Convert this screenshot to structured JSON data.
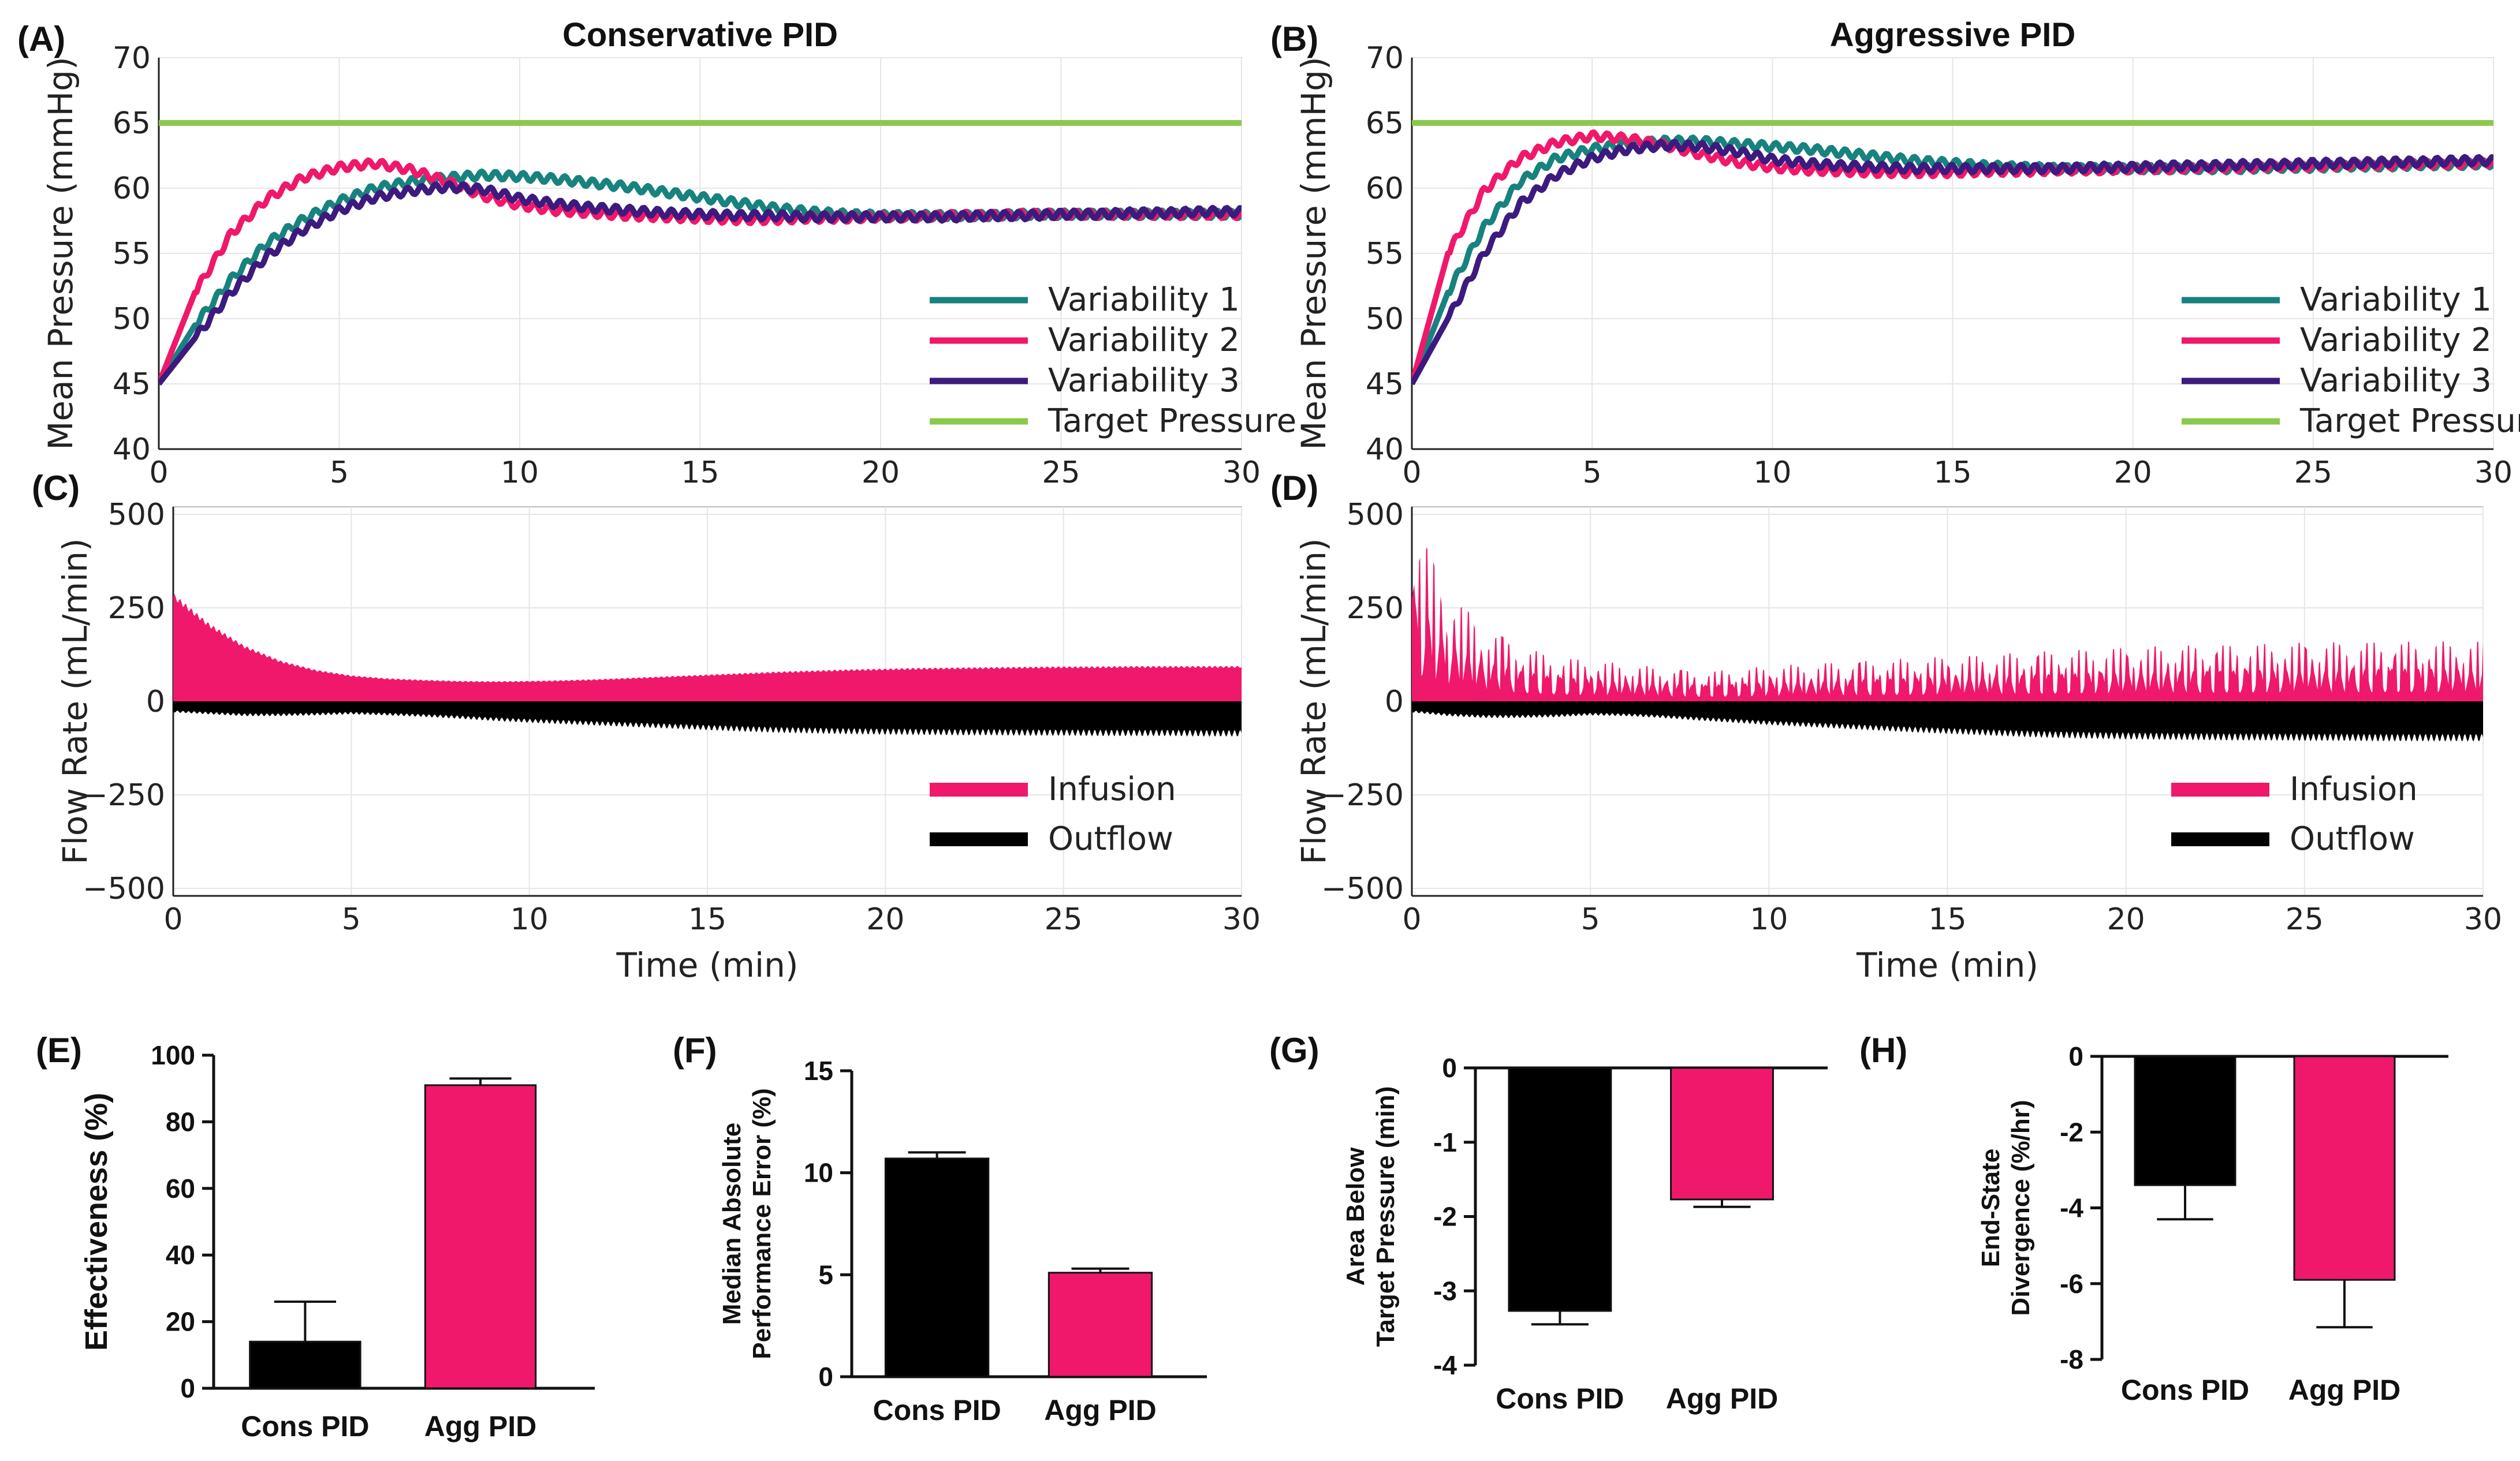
{
  "chart_data": [
    {
      "panel": "(A)",
      "type": "line",
      "title": "Conservative PID",
      "xlabel": "",
      "ylabel": "Mean Pressure (mmHg)",
      "xlim": [
        0,
        30
      ],
      "ylim": [
        40,
        70
      ],
      "xticks": [
        "0",
        "5",
        "10",
        "15",
        "20",
        "25",
        "30"
      ],
      "yticks": [
        "40",
        "45",
        "50",
        "55",
        "60",
        "65",
        "70"
      ],
      "grid": true,
      "legend": "bottom-right",
      "series": [
        {
          "name": "Variability 1",
          "color": "#18827E",
          "x": [
            0,
            1,
            2,
            3,
            4,
            5,
            6,
            7,
            8,
            9,
            10,
            11,
            12,
            13,
            14,
            15,
            16,
            17,
            18,
            19,
            20,
            21,
            22,
            23,
            24,
            25,
            26,
            27,
            28,
            29,
            30
          ],
          "y": [
            45,
            49.5,
            53,
            55.8,
            57.6,
            59,
            60,
            60.5,
            60.8,
            61,
            60.9,
            60.7,
            60.4,
            60.1,
            59.7,
            59.3,
            58.9,
            58.5,
            58.2,
            58,
            57.9,
            57.9,
            57.9,
            57.9,
            58,
            58,
            58,
            58,
            58,
            58,
            58
          ]
        },
        {
          "name": "Variability 2",
          "color": "#F0186A",
          "x": [
            0,
            1,
            2,
            3,
            4,
            5,
            6,
            7,
            8,
            9,
            10,
            11,
            12,
            13,
            14,
            15,
            16,
            17,
            18,
            19,
            20,
            21,
            22,
            23,
            24,
            25,
            26,
            27,
            28,
            29,
            30
          ],
          "y": [
            45,
            52,
            56.5,
            59.2,
            60.8,
            61.6,
            61.9,
            61.4,
            60.5,
            59.4,
            58.7,
            58.3,
            58.1,
            57.9,
            57.8,
            57.7,
            57.6,
            57.6,
            57.7,
            57.7,
            57.8,
            57.8,
            57.9,
            57.9,
            58,
            58,
            58,
            58,
            58,
            58,
            58
          ]
        },
        {
          "name": "Variability 3",
          "color": "#3D1A7E",
          "x": [
            0,
            1,
            2,
            3,
            4,
            5,
            6,
            7,
            8,
            9,
            10,
            11,
            12,
            13,
            14,
            15,
            16,
            17,
            18,
            19,
            20,
            21,
            22,
            23,
            24,
            25,
            26,
            27,
            28,
            29,
            30
          ],
          "y": [
            45,
            48.5,
            52,
            54.8,
            56.8,
            58.3,
            59.3,
            59.8,
            60.1,
            59.9,
            59.2,
            58.8,
            58.5,
            58.3,
            58.1,
            58,
            57.9,
            57.9,
            57.8,
            57.8,
            57.8,
            57.8,
            57.8,
            57.9,
            57.9,
            58,
            58,
            58.1,
            58.1,
            58.2,
            58.2
          ]
        },
        {
          "name": "Target Pressure",
          "color": "#8CC84B",
          "x": [
            0,
            30
          ],
          "y": [
            65,
            65
          ]
        }
      ]
    },
    {
      "panel": "(B)",
      "type": "line",
      "title": "Aggressive PID",
      "xlabel": "",
      "ylabel": "Mean Pressure (mmHg)",
      "xlim": [
        0,
        30
      ],
      "ylim": [
        40,
        70
      ],
      "xticks": [
        "0",
        "5",
        "10",
        "15",
        "20",
        "25",
        "30"
      ],
      "yticks": [
        "40",
        "45",
        "50",
        "55",
        "60",
        "65",
        "70"
      ],
      "grid": true,
      "legend": "bottom-right",
      "series": [
        {
          "name": "Variability 1",
          "color": "#18827E",
          "x": [
            0,
            1,
            2,
            3,
            4,
            5,
            6,
            7,
            8,
            9,
            10,
            11,
            12,
            13,
            14,
            15,
            16,
            17,
            18,
            19,
            20,
            21,
            22,
            23,
            24,
            25,
            26,
            27,
            28,
            29,
            30
          ],
          "y": [
            45,
            52,
            57,
            60.5,
            62.3,
            63,
            63.4,
            63.6,
            63.6,
            63.4,
            63.2,
            63,
            62.7,
            62.4,
            62.1,
            61.9,
            61.7,
            61.6,
            61.5,
            61.5,
            61.5,
            61.5,
            61.5,
            61.5,
            61.6,
            61.6,
            61.7,
            61.7,
            61.8,
            61.8,
            61.9
          ]
        },
        {
          "name": "Variability 2",
          "color": "#F0186A",
          "x": [
            0,
            1,
            2,
            3,
            4,
            5,
            6,
            7,
            8,
            9,
            10,
            11,
            12,
            13,
            14,
            15,
            16,
            17,
            18,
            19,
            20,
            21,
            22,
            23,
            24,
            25,
            26,
            27,
            28,
            29,
            30
          ],
          "y": [
            45,
            55,
            59.8,
            62.3,
            63.5,
            64,
            63.8,
            63.3,
            62.6,
            62,
            61.6,
            61.4,
            61.3,
            61.2,
            61.2,
            61.2,
            61.3,
            61.3,
            61.4,
            61.4,
            61.5,
            61.5,
            61.6,
            61.6,
            61.7,
            61.7,
            61.8,
            61.8,
            61.9,
            61.9,
            62
          ]
        },
        {
          "name": "Variability 3",
          "color": "#3D1A7E",
          "x": [
            0,
            1,
            2,
            3,
            4,
            5,
            6,
            7,
            8,
            9,
            10,
            11,
            12,
            13,
            14,
            15,
            16,
            17,
            18,
            19,
            20,
            21,
            22,
            23,
            24,
            25,
            26,
            27,
            28,
            29,
            30
          ],
          "y": [
            45,
            50,
            55,
            58.8,
            61,
            62.3,
            63,
            63.3,
            63.2,
            62.8,
            62.2,
            61.9,
            61.7,
            61.6,
            61.5,
            61.5,
            61.5,
            61.5,
            61.5,
            61.6,
            61.6,
            61.7,
            61.7,
            61.8,
            61.8,
            61.9,
            61.9,
            62,
            62,
            62.1,
            62.1
          ]
        },
        {
          "name": "Target Pressure",
          "color": "#8CC84B",
          "x": [
            0,
            30
          ],
          "y": [
            65,
            65
          ]
        }
      ]
    },
    {
      "panel": "(C)",
      "type": "area",
      "title": "",
      "xlabel": "Time (min)",
      "ylabel": "Flow Rate (mL/min)",
      "xlim": [
        0,
        30
      ],
      "ylim": [
        -520,
        520
      ],
      "xticks": [
        "0",
        "5",
        "10",
        "15",
        "20",
        "25",
        "30"
      ],
      "yticks": [
        "−500",
        "−250",
        "0",
        "250",
        "500"
      ],
      "grid": true,
      "legend": "bottom-right",
      "series": [
        {
          "name": "Infusion",
          "color": "#F0186A",
          "x": [
            0,
            1,
            2,
            3,
            4,
            5,
            6,
            7,
            8,
            9,
            10,
            11,
            12,
            13,
            14,
            15,
            16,
            17,
            18,
            19,
            20,
            21,
            22,
            23,
            24,
            25,
            26,
            27,
            28,
            29,
            30
          ],
          "y": [
            290,
            210,
            150,
            110,
            85,
            70,
            62,
            58,
            55,
            54,
            55,
            57,
            60,
            64,
            68,
            72,
            76,
            80,
            83,
            86,
            88,
            90,
            91,
            92,
            93,
            94,
            94,
            95,
            95,
            95,
            95
          ]
        },
        {
          "name": "Outflow",
          "color": "#000000",
          "x": [
            0,
            1,
            2,
            3,
            4,
            5,
            6,
            7,
            8,
            9,
            10,
            11,
            12,
            13,
            14,
            15,
            16,
            17,
            18,
            19,
            20,
            21,
            22,
            23,
            24,
            25,
            26,
            27,
            28,
            29,
            30
          ],
          "y": [
            -30,
            -35,
            -40,
            -40,
            -38,
            -35,
            -38,
            -42,
            -47,
            -53,
            -58,
            -62,
            -66,
            -70,
            -74,
            -78,
            -82,
            -85,
            -87,
            -89,
            -90,
            -91,
            -92,
            -92,
            -93,
            -93,
            -94,
            -94,
            -94,
            -95,
            -95
          ]
        }
      ]
    },
    {
      "panel": "(D)",
      "type": "area",
      "title": "",
      "xlabel": "Time (min)",
      "ylabel": "Flow Rate (mL/min)",
      "xlim": [
        0,
        30
      ],
      "ylim": [
        -520,
        520
      ],
      "xticks": [
        "0",
        "5",
        "10",
        "15",
        "20",
        "25",
        "30"
      ],
      "yticks": [
        "−500",
        "−250",
        "0",
        "250",
        "500"
      ],
      "grid": true,
      "legend": "bottom-right",
      "series": [
        {
          "name": "Infusion",
          "color": "#F0186A",
          "x": [
            0,
            1,
            2,
            3,
            4,
            5,
            6,
            7,
            8,
            9,
            10,
            11,
            12,
            13,
            14,
            15,
            16,
            17,
            18,
            19,
            20,
            21,
            22,
            23,
            24,
            25,
            26,
            27,
            28,
            29,
            30
          ],
          "y": [
            500,
            300,
            200,
            150,
            120,
            110,
            100,
            90,
            80,
            85,
            95,
            100,
            105,
            110,
            115,
            120,
            125,
            130,
            135,
            140,
            145,
            148,
            150,
            152,
            155,
            157,
            158,
            160,
            160,
            160,
            160
          ]
        },
        {
          "name": "Outflow",
          "color": "#000000",
          "x": [
            0,
            1,
            2,
            3,
            4,
            5,
            6,
            7,
            8,
            9,
            10,
            11,
            12,
            13,
            14,
            15,
            16,
            17,
            18,
            19,
            20,
            21,
            22,
            23,
            24,
            25,
            26,
            27,
            28,
            29,
            30
          ],
          "y": [
            -30,
            -40,
            -45,
            -45,
            -43,
            -38,
            -40,
            -45,
            -52,
            -58,
            -64,
            -69,
            -74,
            -79,
            -84,
            -88,
            -92,
            -96,
            -99,
            -101,
            -103,
            -104,
            -105,
            -106,
            -106,
            -107,
            -107,
            -108,
            -108,
            -108,
            -108
          ]
        }
      ]
    },
    {
      "panel": "(E)",
      "type": "bar",
      "title": "",
      "ylabel": "Effectiveness (%)",
      "categories": [
        "Cons PID",
        "Agg PID"
      ],
      "values": [
        14,
        91
      ],
      "errors": [
        12,
        2
      ],
      "colors": [
        "#000000",
        "#F0186A"
      ],
      "ylim": [
        0,
        100
      ],
      "yticks": [
        "0",
        "20",
        "40",
        "60",
        "80",
        "100"
      ]
    },
    {
      "panel": "(F)",
      "type": "bar",
      "title": "",
      "ylabel": [
        "Median Absolute",
        "Performance Error (%)"
      ],
      "categories": [
        "Cons PID",
        "Agg PID"
      ],
      "values": [
        10.7,
        5.1
      ],
      "errors": [
        0.3,
        0.2
      ],
      "colors": [
        "#000000",
        "#F0186A"
      ],
      "ylim": [
        0,
        15
      ],
      "yticks": [
        "0",
        "5",
        "10",
        "15"
      ]
    },
    {
      "panel": "(G)",
      "type": "bar",
      "title": "",
      "ylabel": [
        "Area Below",
        "Target Pressure (min)"
      ],
      "categories": [
        "Cons PID",
        "Agg PID"
      ],
      "values": [
        -3.27,
        -1.77
      ],
      "errors": [
        0.18,
        0.1
      ],
      "colors": [
        "#000000",
        "#F0186A"
      ],
      "ylim": [
        -4,
        0
      ],
      "yticks": [
        "-4",
        "-3",
        "-2",
        "-1",
        "0"
      ]
    },
    {
      "panel": "(H)",
      "type": "bar",
      "title": "",
      "ylabel": [
        "End-State",
        "Divergence (%/hr)"
      ],
      "categories": [
        "Cons PID",
        "Agg PID"
      ],
      "values": [
        -3.4,
        -5.9
      ],
      "errors": [
        0.9,
        1.25
      ],
      "colors": [
        "#000000",
        "#F0186A"
      ],
      "ylim": [
        -8,
        0
      ],
      "yticks": [
        "-8",
        "-6",
        "-4",
        "-2",
        "0"
      ]
    }
  ]
}
